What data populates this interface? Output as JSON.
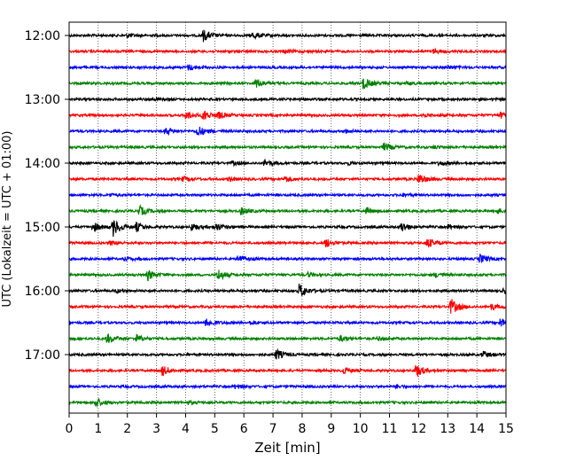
{
  "chart_data": {
    "type": "line",
    "title": "",
    "xlabel": "Zeit  [min]",
    "ylabel": "UTC (Lokalzeit = UTC + 01:00)",
    "xlim": [
      0,
      15
    ],
    "x_ticks": [
      0,
      1,
      2,
      3,
      4,
      5,
      6,
      7,
      8,
      9,
      10,
      11,
      12,
      13,
      14,
      15
    ],
    "x_tick_labels": [
      "0",
      "1",
      "2",
      "3",
      "4",
      "5",
      "6",
      "7",
      "8",
      "9",
      "10",
      "11",
      "12",
      "13",
      "14",
      "15"
    ],
    "y_tick_labels": [
      "12:00",
      "13:00",
      "14:00",
      "15:00",
      "16:00",
      "17:00"
    ],
    "y_tick_rows": [
      0,
      4,
      8,
      12,
      16,
      20
    ],
    "row_start": "12:00",
    "row_interval_min": 15,
    "grid_x": true,
    "grid_y": false,
    "colors": [
      "#000000",
      "#ff0000",
      "#0000ff",
      "#008000"
    ],
    "rows": [
      {
        "time": "12:00",
        "color": "#000000",
        "events": [
          [
            4.6,
            2.5
          ],
          [
            6.3,
            1.5
          ],
          [
            2.0,
            0.8
          ]
        ]
      },
      {
        "time": "12:15",
        "color": "#ff0000",
        "events": [
          [
            7.4,
            0.8
          ],
          [
            12.5,
            0.9
          ]
        ]
      },
      {
        "time": "12:30",
        "color": "#0000ff",
        "events": [
          [
            4.1,
            1.2
          ],
          [
            13.0,
            0.7
          ]
        ]
      },
      {
        "time": "12:45",
        "color": "#008000",
        "events": [
          [
            6.4,
            2.2
          ],
          [
            10.1,
            2.6
          ],
          [
            11.6,
            0.6
          ]
        ]
      },
      {
        "time": "13:00",
        "color": "#000000",
        "events": [
          [
            2.8,
            0.6
          ],
          [
            7.9,
            0.5
          ]
        ]
      },
      {
        "time": "13:15",
        "color": "#ff0000",
        "events": [
          [
            4.0,
            1.8
          ],
          [
            4.6,
            2.3
          ],
          [
            5.1,
            1.4
          ],
          [
            12.1,
            0.8
          ],
          [
            14.8,
            1.2
          ]
        ]
      },
      {
        "time": "13:30",
        "color": "#0000ff",
        "events": [
          [
            3.3,
            1.6
          ],
          [
            4.4,
            2.4
          ],
          [
            9.5,
            0.6
          ]
        ]
      },
      {
        "time": "13:45",
        "color": "#008000",
        "events": [
          [
            10.8,
            1.8
          ],
          [
            12.5,
            0.6
          ]
        ]
      },
      {
        "time": "14:00",
        "color": "#000000",
        "events": [
          [
            6.7,
            1.6
          ],
          [
            5.6,
            0.8
          ],
          [
            12.7,
            0.9
          ],
          [
            9.6,
            0.5
          ]
        ]
      },
      {
        "time": "14:15",
        "color": "#ff0000",
        "events": [
          [
            12.0,
            2.4
          ],
          [
            7.4,
            1.4
          ],
          [
            3.9,
            1.0
          ],
          [
            5.5,
            0.8
          ]
        ]
      },
      {
        "time": "14:30",
        "color": "#0000ff",
        "events": [
          [
            11.4,
            0.7
          ],
          [
            1.4,
            0.6
          ]
        ]
      },
      {
        "time": "14:45",
        "color": "#008000",
        "events": [
          [
            2.4,
            2.2
          ],
          [
            5.9,
            1.6
          ],
          [
            10.2,
            1.2
          ],
          [
            14.7,
            1.0
          ]
        ]
      },
      {
        "time": "15:00",
        "color": "#000000",
        "events": [
          [
            1.5,
            4.0
          ],
          [
            0.8,
            2.2
          ],
          [
            2.3,
            1.8
          ],
          [
            4.2,
            1.6
          ],
          [
            5.0,
            1.8
          ],
          [
            11.4,
            2.2
          ],
          [
            13.0,
            1.0
          ]
        ]
      },
      {
        "time": "15:15",
        "color": "#ff0000",
        "events": [
          [
            8.8,
            2.0
          ],
          [
            12.3,
            2.2
          ],
          [
            1.4,
            0.8
          ]
        ]
      },
      {
        "time": "15:30",
        "color": "#0000ff",
        "events": [
          [
            5.8,
            1.8
          ],
          [
            14.1,
            1.9
          ],
          [
            1.9,
            0.8
          ]
        ]
      },
      {
        "time": "15:45",
        "color": "#008000",
        "events": [
          [
            2.7,
            2.2
          ],
          [
            5.1,
            2.6
          ],
          [
            8.2,
            0.9
          ],
          [
            12.6,
            0.9
          ]
        ]
      },
      {
        "time": "16:00",
        "color": "#000000",
        "events": [
          [
            7.9,
            3.2
          ],
          [
            14.9,
            1.0
          ],
          [
            1.6,
            0.7
          ]
        ]
      },
      {
        "time": "16:15",
        "color": "#ff0000",
        "events": [
          [
            13.1,
            3.5
          ],
          [
            14.5,
            1.2
          ]
        ]
      },
      {
        "time": "16:30",
        "color": "#0000ff",
        "events": [
          [
            4.7,
            2.0
          ],
          [
            14.8,
            2.0
          ],
          [
            6.2,
            0.7
          ]
        ]
      },
      {
        "time": "16:45",
        "color": "#008000",
        "events": [
          [
            1.3,
            2.2
          ],
          [
            2.3,
            1.7
          ],
          [
            9.3,
            1.2
          ],
          [
            10.6,
            0.8
          ]
        ]
      },
      {
        "time": "17:00",
        "color": "#000000",
        "events": [
          [
            7.1,
            2.4
          ],
          [
            14.2,
            1.4
          ]
        ]
      },
      {
        "time": "17:15",
        "color": "#ff0000",
        "events": [
          [
            3.2,
            2.2
          ],
          [
            9.4,
            1.6
          ],
          [
            11.9,
            3.0
          ]
        ]
      },
      {
        "time": "17:30",
        "color": "#0000ff",
        "events": [
          [
            5.7,
            0.9
          ],
          [
            11.2,
            0.7
          ]
        ]
      },
      {
        "time": "17:45",
        "color": "#008000",
        "events": [
          [
            0.9,
            2.0
          ],
          [
            4.1,
            0.6
          ]
        ]
      }
    ]
  }
}
